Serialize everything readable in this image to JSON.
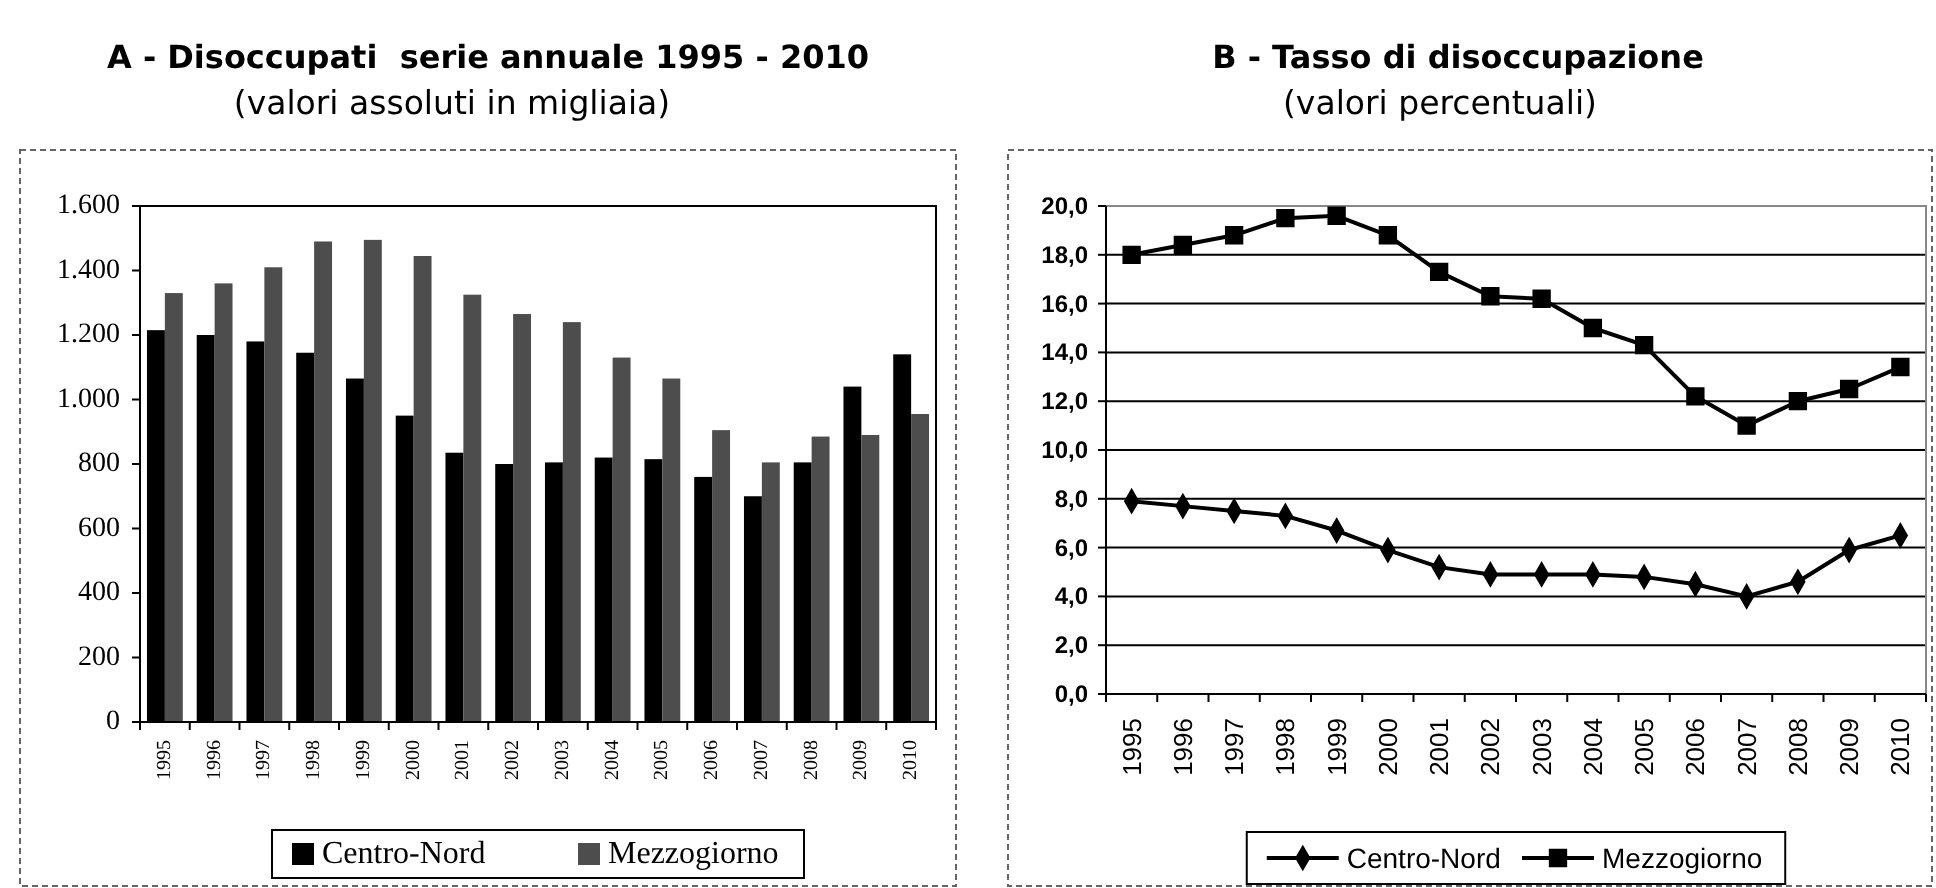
{
  "chart_data": [
    {
      "type": "bar",
      "title": "A - Disoccupati  serie annuale 1995 - 2010",
      "subtitle": "(valori assoluti in migliaia)",
      "categories": [
        "1995",
        "1996",
        "1997",
        "1998",
        "1999",
        "2000",
        "2001",
        "2002",
        "2003",
        "2004",
        "2005",
        "2006",
        "2007",
        "2008",
        "2009",
        "2010"
      ],
      "series": [
        {
          "name": "Centro-Nord",
          "color": "#000000",
          "values": [
            1215,
            1200,
            1180,
            1145,
            1065,
            950,
            835,
            800,
            805,
            820,
            815,
            760,
            700,
            805,
            1040,
            1140
          ]
        },
        {
          "name": "Mezzogiorno",
          "color": "#4d4d4d",
          "values": [
            1330,
            1360,
            1410,
            1490,
            1495,
            1445,
            1325,
            1265,
            1240,
            1130,
            1065,
            905,
            805,
            885,
            890,
            955
          ]
        }
      ],
      "ylim": [
        0,
        1600
      ],
      "yticks": [
        0,
        200,
        400,
        600,
        800,
        {
          "value": 1000,
          "label": "1.000"
        },
        {
          "value": 1200,
          "label": "1.200"
        },
        {
          "value": 1400,
          "label": "1.400"
        },
        {
          "value": 1600,
          "label": "1.600"
        }
      ],
      "legend": "bottom"
    },
    {
      "type": "line",
      "title": "B - Tasso di disoccupazione",
      "subtitle": "(valori percentuali)",
      "categories": [
        "1995",
        "1996",
        "1997",
        "1998",
        "1999",
        "2000",
        "2001",
        "2002",
        "2003",
        "2004",
        "2005",
        "2006",
        "2007",
        "2008",
        "2009",
        "2010"
      ],
      "series": [
        {
          "name": "Centro-Nord",
          "color": "#000000",
          "marker": "diamond",
          "values": [
            7.9,
            7.7,
            7.5,
            7.3,
            6.7,
            5.9,
            5.2,
            4.9,
            4.9,
            4.9,
            4.8,
            4.5,
            4.0,
            4.6,
            5.9,
            6.5
          ]
        },
        {
          "name": "Mezzogiorno",
          "color": "#000000",
          "marker": "square",
          "values": [
            18.0,
            18.4,
            18.8,
            19.5,
            19.6,
            18.8,
            17.3,
            16.3,
            16.2,
            15.0,
            14.3,
            12.2,
            11.0,
            12.0,
            12.5,
            13.4
          ]
        }
      ],
      "ylim": [
        0,
        20
      ],
      "yticks": [
        {
          "value": 0,
          "label": "0,0"
        },
        {
          "value": 2,
          "label": "2,0"
        },
        {
          "value": 4,
          "label": "4,0"
        },
        {
          "value": 6,
          "label": "6,0"
        },
        {
          "value": 8,
          "label": "8,0"
        },
        {
          "value": 10,
          "label": "10,0"
        },
        {
          "value": 12,
          "label": "12,0"
        },
        {
          "value": 14,
          "label": "14,0"
        },
        {
          "value": 16,
          "label": "16,0"
        },
        {
          "value": 18,
          "label": "18,0"
        },
        {
          "value": 20,
          "label": "20,0"
        }
      ],
      "grid": "y",
      "legend": "bottom"
    }
  ]
}
